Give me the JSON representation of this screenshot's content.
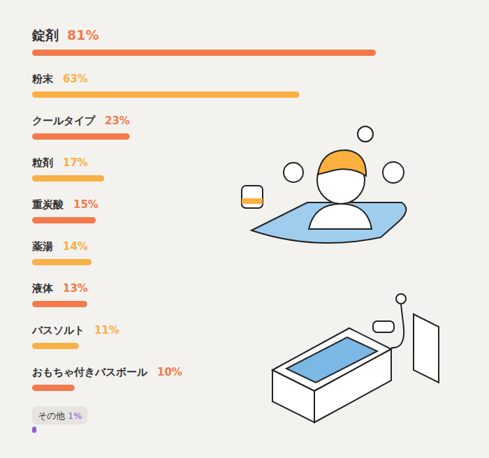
{
  "chart_data": {
    "type": "bar",
    "orientation": "horizontal",
    "categories": [
      "錠剤",
      "粉末",
      "クールタイプ",
      "粒剤",
      "重炭酸",
      "薬湯",
      "液体",
      "バスソルト",
      "おもちゃ付きバスボール",
      "その他"
    ],
    "values": [
      81,
      63,
      23,
      17,
      15,
      14,
      13,
      11,
      10,
      1
    ],
    "value_labels": [
      "81%",
      "63%",
      "23%",
      "17%",
      "15%",
      "14%",
      "13%",
      "11%",
      "10%",
      "1%"
    ],
    "colors": [
      "#f47a4b",
      "#f9b044",
      "#f47a4b",
      "#f9b044",
      "#f47a4b",
      "#f9b044",
      "#f47a4b",
      "#f9b044",
      "#f47a4b",
      "#8a60d6"
    ],
    "xlim": [
      0,
      81
    ],
    "tick_labels": false,
    "data_labels": true
  }
}
